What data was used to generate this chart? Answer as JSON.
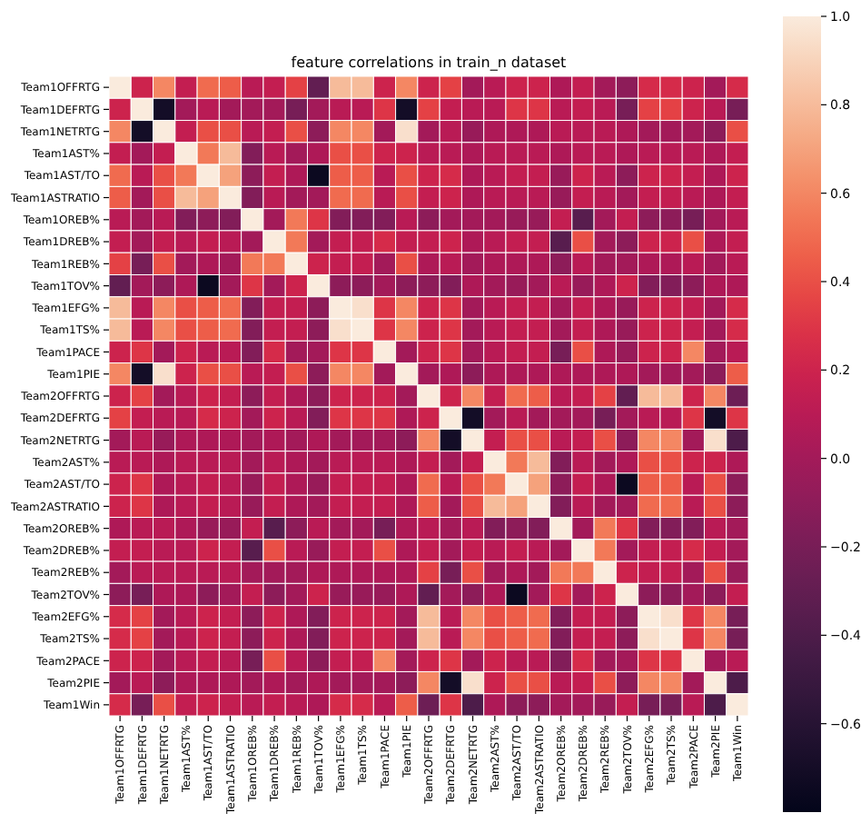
{
  "chart_data": {
    "type": "heatmap",
    "title": "feature correlations in train_n dataset",
    "categories": [
      "Team1OFFRTG",
      "Team1DEFRTG",
      "Team1NETRTG",
      "Team1AST%",
      "Team1AST/TO",
      "Team1ASTRATIO",
      "Team1OREB%",
      "Team1DREB%",
      "Team1REB%",
      "Team1TOV%",
      "Team1EFG%",
      "Team1TS%",
      "Team1PACE",
      "Team1PIE",
      "Team2OFFRTG",
      "Team2DEFRTG",
      "Team2NETRTG",
      "Team2AST%",
      "Team2AST/TO",
      "Team2ASTRATIO",
      "Team2OREB%",
      "Team2DREB%",
      "Team2REB%",
      "Team2TOV%",
      "Team2EFG%",
      "Team2TS%",
      "Team2PACE",
      "Team2PIE",
      "Team1Win"
    ],
    "y_categories": [
      "Team1OFFRTG",
      "Team1DEFRTG",
      "Team1NETRTG",
      "Team1AST%",
      "Team1AST/TO",
      "Team1ASTRATIO",
      "Team1OREB%",
      "Team1DREB%",
      "Team1REB%",
      "Team1TOV%",
      "Team1EFG%",
      "Team1TS%",
      "Team1PACE",
      "Team1PIE",
      "Team2OFFRTG",
      "Team2DEFRTG",
      "Team2NETRTG",
      "Team2AST%",
      "Team2AST/TO",
      "Team2ASTRATIO",
      "Team2OREB%",
      "Team2DREB%",
      "Team2REB%",
      "Team2TOV%",
      "Team2EFG%",
      "Team2TS%",
      "Team2PACE",
      "Team2PIE",
      "Team1Win"
    ],
    "cells": [
      [
        1,
        0.2,
        0.6,
        0.15,
        0.5,
        0.45,
        0.1,
        0.15,
        0.35,
        -0.3,
        0.8,
        0.8,
        0.2,
        0.6,
        0.2,
        0.35,
        0.0,
        0.1,
        0.2,
        0.2,
        0.05,
        0.15,
        0.0,
        -0.1,
        0.25,
        0.25,
        0.2,
        0.0,
        0.25
      ],
      [
        0.2,
        1,
        -0.7,
        0.0,
        0.1,
        0.0,
        0.0,
        0.0,
        -0.2,
        0.0,
        0.1,
        0.1,
        0.3,
        -0.7,
        0.35,
        0.15,
        0.1,
        0.1,
        0.3,
        0.3,
        0.1,
        0.15,
        0.1,
        -0.2,
        0.35,
        0.35,
        0.2,
        0.1,
        -0.2
      ],
      [
        0.6,
        -0.7,
        1,
        0.15,
        0.4,
        0.4,
        0.1,
        0.15,
        0.4,
        -0.1,
        0.6,
        0.6,
        0.0,
        0.95,
        0.0,
        0.1,
        -0.05,
        0.05,
        0.05,
        0.05,
        0.1,
        0.1,
        0.1,
        0.05,
        0.0,
        0.0,
        0.0,
        -0.1,
        0.4
      ],
      [
        0.15,
        0.0,
        0.15,
        1,
        0.55,
        0.8,
        -0.15,
        0.1,
        0.0,
        0.05,
        0.4,
        0.4,
        0.2,
        0.2,
        0.1,
        0.1,
        0.05,
        0.1,
        0.1,
        0.1,
        0.05,
        0.1,
        0.1,
        0.05,
        0.1,
        0.1,
        0.1,
        0.05,
        0.15
      ],
      [
        0.5,
        0.1,
        0.4,
        0.55,
        1,
        0.7,
        -0.1,
        0.15,
        0.05,
        -0.75,
        0.45,
        0.45,
        0.1,
        0.4,
        0.2,
        0.25,
        0.05,
        0.1,
        0.15,
        0.15,
        -0.05,
        0.2,
        0.1,
        -0.1,
        0.2,
        0.2,
        0.15,
        0.05,
        0.2
      ],
      [
        0.45,
        0.0,
        0.4,
        0.8,
        0.7,
        1,
        -0.15,
        0.1,
        0.0,
        0.0,
        0.5,
        0.5,
        0.1,
        0.4,
        0.15,
        0.2,
        0.05,
        0.1,
        0.1,
        0.1,
        -0.05,
        0.15,
        0.1,
        0.0,
        0.15,
        0.15,
        0.1,
        0.05,
        0.15
      ],
      [
        0.1,
        0.0,
        0.1,
        -0.15,
        -0.1,
        -0.15,
        1,
        0.0,
        0.55,
        0.3,
        -0.15,
        -0.15,
        -0.15,
        0.1,
        -0.1,
        0.0,
        0.0,
        0.0,
        -0.05,
        -0.05,
        0.15,
        -0.35,
        0.0,
        0.15,
        -0.1,
        -0.1,
        -0.2,
        0.0,
        0.1
      ],
      [
        0.15,
        0.0,
        0.15,
        0.1,
        0.15,
        0.1,
        0.0,
        1,
        0.55,
        0.0,
        0.15,
        0.15,
        0.25,
        0.15,
        0.15,
        0.2,
        0.05,
        0.1,
        0.15,
        0.15,
        -0.35,
        0.4,
        0.0,
        -0.1,
        0.2,
        0.2,
        0.4,
        0.05,
        0.15
      ],
      [
        0.35,
        -0.2,
        0.4,
        0.0,
        0.05,
        0.0,
        0.55,
        0.55,
        1,
        0.2,
        0.15,
        0.15,
        0.0,
        0.4,
        0.05,
        0.1,
        0.0,
        0.05,
        0.05,
        0.05,
        -0.1,
        0.1,
        0.0,
        0.0,
        0.05,
        0.05,
        0.1,
        0.0,
        0.1
      ],
      [
        -0.3,
        0.0,
        -0.1,
        0.05,
        -0.75,
        0.0,
        0.3,
        0.0,
        0.2,
        1,
        -0.1,
        -0.1,
        0.0,
        -0.1,
        -0.1,
        -0.15,
        0.05,
        0.0,
        -0.05,
        0.0,
        0.1,
        -0.05,
        0.05,
        0.2,
        -0.15,
        -0.15,
        -0.1,
        0.05,
        0.05
      ],
      [
        0.8,
        0.1,
        0.6,
        0.4,
        0.45,
        0.5,
        -0.15,
        0.15,
        0.15,
        -0.1,
        1,
        0.95,
        0.3,
        0.6,
        0.2,
        0.3,
        0.0,
        0.1,
        0.15,
        0.15,
        0.0,
        0.15,
        0.05,
        -0.05,
        0.2,
        0.2,
        0.15,
        0.0,
        0.25
      ],
      [
        0.8,
        0.1,
        0.6,
        0.4,
        0.45,
        0.5,
        -0.15,
        0.15,
        0.15,
        -0.1,
        0.95,
        1,
        0.3,
        0.6,
        0.2,
        0.3,
        0.0,
        0.1,
        0.15,
        0.15,
        0.0,
        0.15,
        0.05,
        -0.05,
        0.2,
        0.2,
        0.15,
        0.0,
        0.25
      ],
      [
        0.2,
        0.3,
        0.0,
        0.2,
        0.1,
        0.1,
        -0.15,
        0.25,
        0.0,
        0.0,
        0.3,
        0.3,
        1,
        0.0,
        0.2,
        0.3,
        0.0,
        0.1,
        0.15,
        0.15,
        -0.2,
        0.4,
        0.05,
        -0.05,
        0.2,
        0.2,
        0.6,
        0.0,
        0.1
      ],
      [
        0.6,
        -0.7,
        0.95,
        0.2,
        0.4,
        0.4,
        0.1,
        0.15,
        0.4,
        -0.1,
        0.6,
        0.6,
        0.0,
        1,
        0.0,
        0.05,
        -0.1,
        0.05,
        0.05,
        0.05,
        0.05,
        0.05,
        0.05,
        0.05,
        0.0,
        0.0,
        0.0,
        -0.1,
        0.45
      ],
      [
        0.2,
        0.35,
        0.0,
        0.1,
        0.2,
        0.15,
        -0.1,
        0.15,
        0.05,
        -0.1,
        0.2,
        0.2,
        0.2,
        0.0,
        1,
        0.2,
        0.6,
        0.15,
        0.5,
        0.45,
        0.1,
        0.15,
        0.35,
        -0.3,
        0.8,
        0.8,
        0.2,
        0.6,
        -0.25
      ],
      [
        0.35,
        0.15,
        0.1,
        0.1,
        0.25,
        0.2,
        0.0,
        0.2,
        0.1,
        -0.15,
        0.3,
        0.3,
        0.3,
        0.05,
        0.2,
        1,
        -0.7,
        0.0,
        0.1,
        0.0,
        0.0,
        0.0,
        -0.2,
        0.0,
        0.1,
        0.1,
        0.3,
        -0.7,
        0.3
      ],
      [
        0.0,
        0.1,
        -0.05,
        0.05,
        0.05,
        0.05,
        0.0,
        0.05,
        0.0,
        0.05,
        0.0,
        0.0,
        0.0,
        -0.1,
        0.6,
        -0.7,
        1,
        0.15,
        0.4,
        0.4,
        0.1,
        0.15,
        0.4,
        -0.1,
        0.6,
        0.6,
        0.0,
        0.95,
        -0.4
      ],
      [
        0.1,
        0.1,
        0.05,
        0.1,
        0.1,
        0.1,
        0.0,
        0.1,
        0.05,
        0.0,
        0.1,
        0.1,
        0.1,
        0.05,
        0.15,
        0.0,
        0.15,
        1,
        0.55,
        0.8,
        -0.15,
        0.1,
        0.0,
        0.05,
        0.4,
        0.4,
        0.2,
        0.2,
        0.05
      ],
      [
        0.2,
        0.3,
        0.05,
        0.1,
        0.15,
        0.1,
        -0.05,
        0.15,
        0.05,
        -0.05,
        0.15,
        0.15,
        0.15,
        0.05,
        0.5,
        0.1,
        0.4,
        0.55,
        1,
        0.7,
        -0.1,
        0.15,
        0.05,
        -0.75,
        0.45,
        0.45,
        0.1,
        0.4,
        -0.1
      ],
      [
        0.2,
        0.3,
        0.05,
        0.1,
        0.15,
        0.1,
        -0.05,
        0.15,
        0.05,
        0.0,
        0.15,
        0.15,
        0.15,
        0.05,
        0.45,
        0.0,
        0.4,
        0.8,
        0.7,
        1,
        -0.15,
        0.1,
        0.0,
        0.0,
        0.5,
        0.5,
        0.1,
        0.4,
        -0.1
      ],
      [
        0.05,
        0.1,
        0.1,
        0.05,
        -0.05,
        -0.05,
        0.15,
        -0.35,
        -0.1,
        0.1,
        0.0,
        0.0,
        -0.2,
        0.05,
        0.1,
        0.0,
        0.1,
        -0.15,
        -0.1,
        -0.15,
        1,
        0.0,
        0.55,
        0.3,
        -0.15,
        -0.15,
        -0.15,
        0.1,
        0.0
      ],
      [
        0.15,
        0.15,
        0.1,
        0.1,
        0.2,
        0.15,
        -0.35,
        0.4,
        0.1,
        -0.05,
        0.15,
        0.15,
        0.4,
        0.05,
        0.15,
        0.0,
        0.15,
        0.1,
        0.15,
        0.1,
        0.0,
        1,
        0.55,
        0.0,
        0.15,
        0.15,
        0.25,
        0.15,
        0.0
      ],
      [
        0.0,
        0.1,
        0.1,
        0.1,
        0.1,
        0.1,
        0.0,
        0.0,
        0.0,
        0.05,
        0.05,
        0.05,
        0.05,
        0.05,
        0.35,
        -0.2,
        0.4,
        0.0,
        0.05,
        0.0,
        0.55,
        0.55,
        1,
        0.2,
        0.15,
        0.15,
        0.0,
        0.4,
        -0.05
      ],
      [
        -0.1,
        -0.2,
        0.05,
        0.05,
        -0.1,
        0.0,
        0.15,
        -0.1,
        0.0,
        0.2,
        -0.05,
        -0.05,
        -0.05,
        0.05,
        -0.3,
        0.0,
        -0.1,
        0.05,
        -0.75,
        0.0,
        0.3,
        0.0,
        0.2,
        1,
        -0.1,
        -0.1,
        0.0,
        -0.1,
        0.15
      ],
      [
        0.25,
        0.35,
        0.0,
        0.1,
        0.2,
        0.15,
        -0.1,
        0.2,
        0.05,
        -0.15,
        0.2,
        0.2,
        0.2,
        0.0,
        0.8,
        0.1,
        0.6,
        0.4,
        0.45,
        0.5,
        -0.15,
        0.15,
        0.15,
        -0.1,
        1,
        0.95,
        0.3,
        0.6,
        -0.2
      ],
      [
        0.25,
        0.35,
        0.0,
        0.1,
        0.2,
        0.15,
        -0.1,
        0.2,
        0.05,
        -0.15,
        0.2,
        0.2,
        0.2,
        0.0,
        0.8,
        0.1,
        0.6,
        0.4,
        0.45,
        0.5,
        -0.15,
        0.15,
        0.15,
        -0.1,
        0.95,
        1,
        0.3,
        0.6,
        -0.2
      ],
      [
        0.2,
        0.2,
        0.0,
        0.1,
        0.15,
        0.1,
        -0.2,
        0.4,
        0.1,
        -0.1,
        0.15,
        0.15,
        0.6,
        0.0,
        0.2,
        0.3,
        0.0,
        0.2,
        0.1,
        0.1,
        -0.15,
        0.25,
        0.0,
        0.0,
        0.3,
        0.3,
        1,
        0.0,
        0.1
      ],
      [
        0.0,
        0.1,
        -0.1,
        0.05,
        0.05,
        0.05,
        0.0,
        0.05,
        0.0,
        0.05,
        0.0,
        0.0,
        0.0,
        -0.1,
        0.6,
        -0.7,
        0.95,
        0.2,
        0.4,
        0.4,
        0.1,
        0.15,
        0.4,
        -0.1,
        0.6,
        0.6,
        0.0,
        1,
        -0.4
      ],
      [
        0.25,
        -0.2,
        0.4,
        0.15,
        0.2,
        0.15,
        0.1,
        0.15,
        0.1,
        0.05,
        0.25,
        0.25,
        0.1,
        0.45,
        -0.25,
        0.3,
        -0.4,
        0.05,
        -0.1,
        -0.1,
        0.0,
        0.0,
        -0.05,
        0.15,
        -0.2,
        -0.2,
        0.1,
        -0.4,
        1
      ]
    ],
    "clim": [
      -0.8,
      1.0
    ],
    "cticks": [
      -0.6,
      -0.4,
      -0.2,
      {
        "value": 0,
        "label": "0.0"
      },
      0.2,
      0.4,
      0.6,
      0.8,
      {
        "value": 1,
        "label": "1.0"
      }
    ]
  }
}
